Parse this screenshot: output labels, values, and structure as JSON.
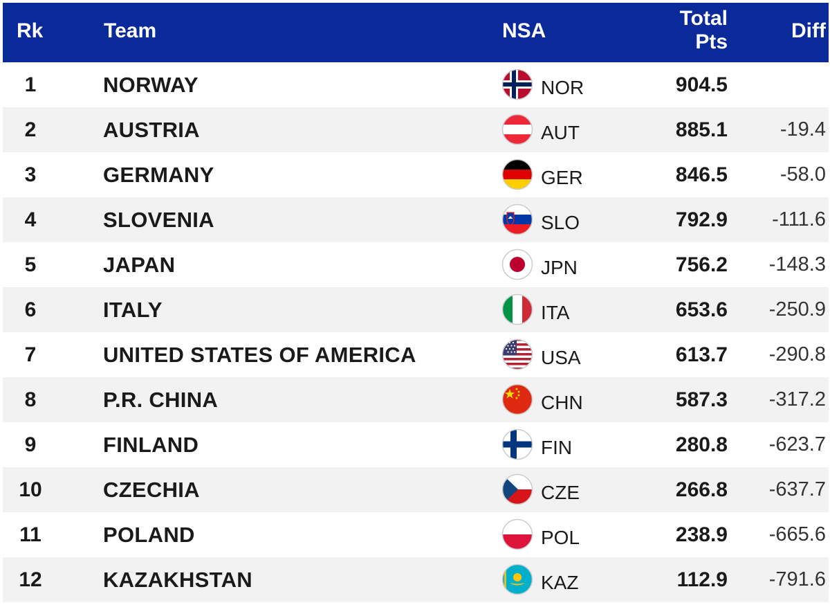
{
  "header": {
    "rank": "Rk",
    "team": "Team",
    "nsa": "NSA",
    "total_line1": "Total",
    "total_line2": "Pts",
    "diff": "Diff"
  },
  "colors": {
    "header_bg": "#0a2a99",
    "row_alt": "#f2f2f2"
  },
  "rows": [
    {
      "rank": "1",
      "team": "NORWAY",
      "flag_icon": "norway-flag-icon",
      "code": "NOR",
      "total": "904.5",
      "diff": ""
    },
    {
      "rank": "2",
      "team": "AUSTRIA",
      "flag_icon": "austria-flag-icon",
      "code": "AUT",
      "total": "885.1",
      "diff": "-19.4"
    },
    {
      "rank": "3",
      "team": "GERMANY",
      "flag_icon": "germany-flag-icon",
      "code": "GER",
      "total": "846.5",
      "diff": "-58.0"
    },
    {
      "rank": "4",
      "team": "SLOVENIA",
      "flag_icon": "slovenia-flag-icon",
      "code": "SLO",
      "total": "792.9",
      "diff": "-111.6"
    },
    {
      "rank": "5",
      "team": "JAPAN",
      "flag_icon": "japan-flag-icon",
      "code": "JPN",
      "total": "756.2",
      "diff": "-148.3"
    },
    {
      "rank": "6",
      "team": "ITALY",
      "flag_icon": "italy-flag-icon",
      "code": "ITA",
      "total": "653.6",
      "diff": "-250.9"
    },
    {
      "rank": "7",
      "team": "UNITED STATES OF AMERICA",
      "flag_icon": "usa-flag-icon",
      "code": "USA",
      "total": "613.7",
      "diff": "-290.8"
    },
    {
      "rank": "8",
      "team": "P.R. CHINA",
      "flag_icon": "china-flag-icon",
      "code": "CHN",
      "total": "587.3",
      "diff": "-317.2"
    },
    {
      "rank": "9",
      "team": "FINLAND",
      "flag_icon": "finland-flag-icon",
      "code": "FIN",
      "total": "280.8",
      "diff": "-623.7"
    },
    {
      "rank": "10",
      "team": "CZECHIA",
      "flag_icon": "czechia-flag-icon",
      "code": "CZE",
      "total": "266.8",
      "diff": "-637.7"
    },
    {
      "rank": "11",
      "team": "POLAND",
      "flag_icon": "poland-flag-icon",
      "code": "POL",
      "total": "238.9",
      "diff": "-665.6"
    },
    {
      "rank": "12",
      "team": "KAZAKHSTAN",
      "flag_icon": "kazakhstan-flag-icon",
      "code": "KAZ",
      "total": "112.9",
      "diff": "-791.6"
    }
  ]
}
